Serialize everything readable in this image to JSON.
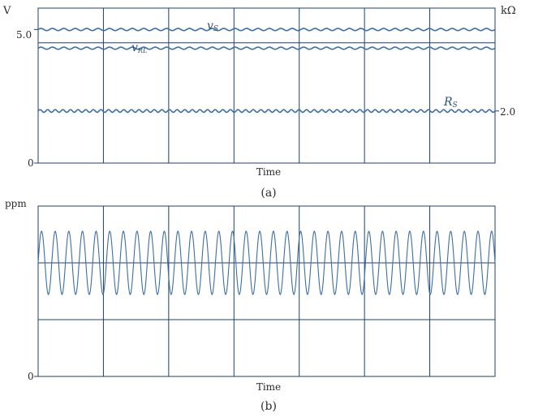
{
  "colors": {
    "frame": "#1c3f6e",
    "trace": "#3d6ea5",
    "text": "#2b2b2b"
  },
  "chart_data": [
    {
      "type": "line",
      "caption": "(a)",
      "xlabel": "Time",
      "ylabel_left": "V",
      "ylabel_right": "kΩ",
      "y_left_ticks": [
        {
          "value": 0,
          "label": "0"
        },
        {
          "value": 5.0,
          "label": "5.0"
        }
      ],
      "y_right_ticks": [
        {
          "value": 2.0,
          "label": "2.0"
        }
      ],
      "ylim_left": [
        0,
        5.8
      ],
      "grid": {
        "vertical_divisions": 7,
        "horizontal_lines_at_left_units": [
          4.5
        ]
      },
      "series": [
        {
          "name": "v",
          "subscript": "S",
          "axis": "left",
          "level": 5.0,
          "ripple_amplitude": 0.04,
          "ripple_cycles": 40
        },
        {
          "name": "v",
          "subscript": "RL",
          "axis": "left",
          "level": 4.3,
          "ripple_amplitude": 0.04,
          "ripple_cycles": 40
        },
        {
          "name": "R",
          "subscript": "S",
          "axis": "right",
          "level": 2.0,
          "level_left_units": 1.95,
          "ripple_amplitude": 0.05,
          "ripple_cycles": 60
        }
      ]
    },
    {
      "type": "line",
      "caption": "(b)",
      "xlabel": "Time",
      "ylabel_left": "ppm",
      "y_left_ticks": [
        {
          "value": 0,
          "label": "0"
        }
      ],
      "ylim_left": [
        0,
        2.1
      ],
      "grid": {
        "vertical_divisions": 7,
        "horizontal_lines_at_left_units": [
          1.4,
          0.7
        ]
      },
      "series": [
        {
          "name": "",
          "axis": "left",
          "mean": 1.4,
          "amplitude": 0.39,
          "cycles": 33.5
        }
      ]
    }
  ]
}
